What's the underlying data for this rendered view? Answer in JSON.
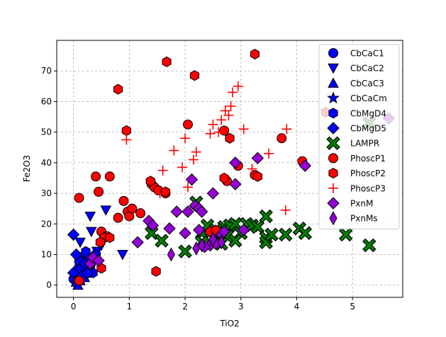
{
  "chart_data": {
    "type": "scatter",
    "title": "",
    "xlabel": "TiO2",
    "ylabel": "Fe2O3",
    "xlim": [
      -0.3,
      5.9
    ],
    "ylim": [
      -4,
      80
    ],
    "xticks": [
      "0",
      "1",
      "2",
      "3",
      "4",
      "5"
    ],
    "yticks": [
      "0",
      "10",
      "20",
      "30",
      "40",
      "50",
      "60",
      "70"
    ],
    "grid": true,
    "legend_position": "top-right",
    "series": [
      {
        "name": "CbCaC1",
        "marker": "circle",
        "color": "#0000ff",
        "points": [
          [
            0.0,
            2
          ],
          [
            0.05,
            1
          ],
          [
            0.1,
            3
          ],
          [
            0.15,
            5
          ],
          [
            0.2,
            4
          ],
          [
            0.1,
            6
          ],
          [
            0.25,
            7
          ],
          [
            0.3,
            6
          ],
          [
            0.35,
            9
          ],
          [
            0.4,
            10
          ],
          [
            0.05,
            4
          ],
          [
            0.15,
            8
          ],
          [
            0.3,
            4
          ]
        ]
      },
      {
        "name": "CbCaC2",
        "marker": "triangle-down",
        "color": "#0000ff",
        "points": [
          [
            0.3,
            22.5
          ],
          [
            0.58,
            24.5
          ],
          [
            0.32,
            17.5
          ],
          [
            0.88,
            10
          ],
          [
            0.12,
            14
          ],
          [
            0.42,
            11
          ],
          [
            0.2,
            9
          ],
          [
            0.5,
            13
          ]
        ]
      },
      {
        "name": "CbCaC3",
        "marker": "triangle-up",
        "color": "#0000ff",
        "points": [
          [
            0.05,
            1
          ],
          [
            0.08,
            0
          ],
          [
            0.1,
            2
          ],
          [
            0.15,
            3
          ],
          [
            0.2,
            2.5
          ],
          [
            0.12,
            1.5
          ]
        ]
      },
      {
        "name": "CbCaCm",
        "marker": "star",
        "color": "#0000ff",
        "points": [
          [
            0.1,
            5
          ],
          [
            0.15,
            7
          ],
          [
            0.2,
            4
          ],
          [
            0.25,
            9
          ],
          [
            0.3,
            6
          ],
          [
            0.18,
            10
          ]
        ]
      },
      {
        "name": "CbMgD4",
        "marker": "hexagon",
        "color": "#0000ff",
        "points": [
          [
            0.1,
            8
          ],
          [
            0.2,
            6
          ],
          [
            0.35,
            4
          ],
          [
            0.4,
            10
          ],
          [
            0.3,
            9
          ],
          [
            0.22,
            11
          ]
        ]
      },
      {
        "name": "CbMgD5",
        "marker": "diamond",
        "color": "#0000ff",
        "points": [
          [
            0.0,
            16.5
          ],
          [
            0.05,
            10
          ],
          [
            0.1,
            5
          ],
          [
            0.15,
            3
          ],
          [
            0.2,
            7
          ],
          [
            0.25,
            4
          ],
          [
            0.0,
            4
          ]
        ]
      },
      {
        "name": "LAMPR",
        "marker": "x",
        "color": "#008000",
        "points": [
          [
            1.4,
            17
          ],
          [
            1.58,
            14.5
          ],
          [
            2.2,
            27
          ],
          [
            2.3,
            17
          ],
          [
            2.4,
            19.5
          ],
          [
            2.5,
            15.5
          ],
          [
            2.6,
            14.5
          ],
          [
            2.7,
            19
          ],
          [
            2.8,
            19.5
          ],
          [
            2.9,
            20
          ],
          [
            3.0,
            17
          ],
          [
            3.1,
            20
          ],
          [
            3.2,
            19.5
          ],
          [
            3.3,
            19
          ],
          [
            3.45,
            22.5
          ],
          [
            3.45,
            15.5
          ],
          [
            3.45,
            14
          ],
          [
            3.55,
            16.5
          ],
          [
            3.8,
            16.5
          ],
          [
            4.05,
            18.5
          ],
          [
            4.15,
            17
          ],
          [
            4.88,
            16.5
          ],
          [
            5.3,
            13
          ],
          [
            5.3,
            53
          ],
          [
            2.0,
            11
          ],
          [
            2.3,
            14
          ],
          [
            2.55,
            18
          ],
          [
            2.75,
            16
          ],
          [
            2.9,
            14.5
          ],
          [
            2.65,
            13.5
          ]
        ]
      },
      {
        "name": "PhoscP1",
        "marker": "circle",
        "color": "#ff0000",
        "points": [
          [
            0.1,
            28.5
          ],
          [
            0.1,
            1.5
          ],
          [
            0.4,
            35.5
          ],
          [
            0.45,
            30.5
          ],
          [
            0.65,
            35.5
          ],
          [
            0.8,
            22
          ],
          [
            0.9,
            27.5
          ],
          [
            0.97,
            24
          ],
          [
            1.0,
            22.5
          ],
          [
            1.05,
            25
          ],
          [
            1.2,
            23.5
          ],
          [
            1.4,
            33
          ],
          [
            1.45,
            32
          ],
          [
            1.52,
            31
          ],
          [
            1.65,
            30
          ],
          [
            2.05,
            52.5
          ],
          [
            2.7,
            50.5
          ],
          [
            2.75,
            34
          ],
          [
            2.95,
            39
          ],
          [
            3.25,
            36
          ],
          [
            3.73,
            48
          ],
          [
            4.1,
            40.5
          ],
          [
            0.5,
            17.5
          ],
          [
            0.6,
            16
          ],
          [
            0.55,
            15.5
          ]
        ]
      },
      {
        "name": "PhoscP2",
        "marker": "hexagon",
        "color": "#ff0000",
        "points": [
          [
            0.8,
            64
          ],
          [
            1.67,
            73
          ],
          [
            2.17,
            68.5
          ],
          [
            3.25,
            75.5
          ],
          [
            0.95,
            50.5
          ],
          [
            1.38,
            34
          ],
          [
            1.65,
            30.5
          ],
          [
            2.8,
            48
          ],
          [
            2.7,
            35
          ],
          [
            3.3,
            35.5
          ],
          [
            4.52,
            56.5
          ],
          [
            0.5,
            5.5
          ],
          [
            1.48,
            4.5
          ],
          [
            2.45,
            17.5
          ],
          [
            2.55,
            18
          ],
          [
            0.65,
            15.5
          ],
          [
            0.48,
            14
          ]
        ]
      },
      {
        "name": "PhoscP3",
        "marker": "plus",
        "color": "#ff0000",
        "points": [
          [
            0.95,
            47.5
          ],
          [
            1.55,
            30
          ],
          [
            1.6,
            37.5
          ],
          [
            1.8,
            44
          ],
          [
            1.95,
            38.5
          ],
          [
            2.0,
            48
          ],
          [
            2.05,
            32
          ],
          [
            2.15,
            41
          ],
          [
            2.2,
            43.5
          ],
          [
            2.45,
            49.5
          ],
          [
            2.5,
            52.5
          ],
          [
            2.6,
            50
          ],
          [
            2.65,
            54
          ],
          [
            2.72,
            57
          ],
          [
            2.78,
            55.5
          ],
          [
            2.82,
            58.5
          ],
          [
            2.85,
            63
          ],
          [
            2.95,
            65
          ],
          [
            3.05,
            51
          ],
          [
            3.2,
            38
          ],
          [
            3.5,
            43
          ],
          [
            3.8,
            24.5
          ],
          [
            3.82,
            51
          ]
        ]
      },
      {
        "name": "PxnM",
        "marker": "diamond",
        "color": "#9400d3",
        "points": [
          [
            0.3,
            7
          ],
          [
            0.35,
            9
          ],
          [
            0.45,
            8
          ],
          [
            1.15,
            14
          ],
          [
            1.35,
            21
          ],
          [
            1.42,
            19.5
          ],
          [
            1.72,
            18.5
          ],
          [
            1.85,
            24
          ],
          [
            2.0,
            17
          ],
          [
            2.05,
            24
          ],
          [
            2.12,
            34.5
          ],
          [
            2.18,
            26
          ],
          [
            2.25,
            25
          ],
          [
            2.3,
            24
          ],
          [
            2.25,
            18
          ],
          [
            2.45,
            13
          ],
          [
            2.5,
            30
          ],
          [
            2.55,
            13.5
          ],
          [
            2.65,
            16.5
          ],
          [
            2.7,
            17.5
          ],
          [
            2.9,
            40
          ],
          [
            2.9,
            33
          ],
          [
            3.05,
            18
          ],
          [
            3.3,
            41.5
          ],
          [
            4.15,
            39
          ],
          [
            5.65,
            54.5
          ],
          [
            2.35,
            12.5
          ]
        ]
      },
      {
        "name": "PxnMs",
        "marker": "thin-diamond",
        "color": "#9400d3",
        "points": [
          [
            1.75,
            10
          ],
          [
            2.2,
            12
          ],
          [
            2.3,
            13
          ],
          [
            2.5,
            15
          ],
          [
            2.65,
            14
          ]
        ]
      }
    ]
  }
}
